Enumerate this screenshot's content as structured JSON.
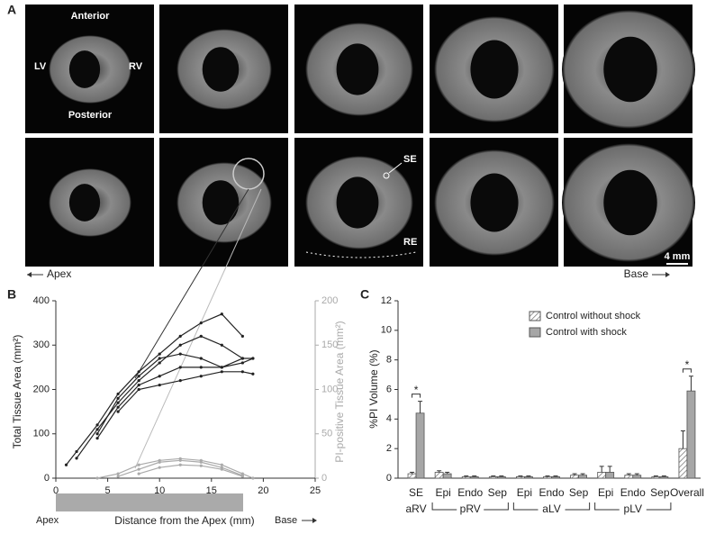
{
  "panel_a": {
    "label": "A",
    "orientation": [
      "Anterior",
      "LV",
      "RV",
      "Posterior"
    ],
    "annotations": [
      "SE",
      "RE"
    ],
    "scale_bar": "4 mm",
    "apex": "Apex",
    "base": "Base"
  },
  "chart_data": [
    {
      "type": "line",
      "panel_label": "B",
      "ylabel": "Total Tissue Area (mm²)",
      "y2label": "PI-positive Tissue Area (mm²)",
      "xlabel": "Distance from the Apex (mm)",
      "ruler_labels": [
        "Apex",
        "Base"
      ],
      "x": [
        1,
        2,
        4,
        6,
        8,
        10,
        12,
        14,
        16,
        18,
        19
      ],
      "xlim": [
        0,
        25
      ],
      "xticks": [
        0,
        5,
        10,
        15,
        20,
        25
      ],
      "ylim": [
        0,
        400
      ],
      "yticks": [
        0,
        100,
        200,
        300,
        400
      ],
      "y2lim": [
        0,
        200
      ],
      "y2ticks": [
        0,
        50,
        100,
        150,
        200
      ],
      "series": [
        {
          "color": "#222222",
          "values": [
            30,
            60,
            120,
            190,
            240,
            280,
            320,
            350,
            370,
            320,
            null
          ]
        },
        {
          "color": "#222222",
          "values": [
            null,
            45,
            110,
            170,
            220,
            260,
            300,
            320,
            300,
            270,
            null
          ]
        },
        {
          "color": "#222222",
          "values": [
            null,
            null,
            100,
            180,
            230,
            270,
            280,
            270,
            250,
            270,
            270
          ]
        },
        {
          "color": "#222222",
          "values": [
            null,
            null,
            90,
            160,
            210,
            230,
            250,
            250,
            250,
            260,
            270
          ]
        },
        {
          "color": "#222222",
          "values": [
            null,
            null,
            null,
            150,
            200,
            210,
            220,
            230,
            240,
            240,
            235
          ]
        },
        {
          "color": "#aaaaaa",
          "axis": "y2",
          "values": [
            null,
            null,
            0,
            5,
            15,
            20,
            22,
            20,
            15,
            5,
            0
          ]
        },
        {
          "color": "#aaaaaa",
          "axis": "y2",
          "values": [
            null,
            null,
            null,
            2,
            10,
            18,
            20,
            18,
            12,
            3,
            null
          ]
        },
        {
          "color": "#aaaaaa",
          "axis": "y2",
          "values": [
            null,
            null,
            null,
            null,
            5,
            12,
            15,
            14,
            10,
            2,
            null
          ]
        }
      ]
    },
    {
      "type": "bar",
      "panel_label": "C",
      "ylabel": "%PI Volume (%)",
      "categories": [
        "SE",
        "Epi",
        "Endo",
        "Sep",
        "Epi",
        "Endo",
        "Sep",
        "Epi",
        "Endo",
        "Sep",
        "Overall"
      ],
      "groups": [
        {
          "label": "aRV",
          "span": [
            0,
            0
          ]
        },
        {
          "label": "pRV",
          "span": [
            1,
            3
          ]
        },
        {
          "label": "aLV",
          "span": [
            4,
            6
          ]
        },
        {
          "label": "pLV",
          "span": [
            7,
            9
          ]
        }
      ],
      "ylim": [
        0,
        12
      ],
      "yticks": [
        0,
        2,
        4,
        6,
        8,
        10,
        12
      ],
      "legend": "top-right",
      "significance": [
        {
          "label": "*",
          "category": 0
        },
        {
          "label": "*",
          "category": 10
        }
      ],
      "series": [
        {
          "name": "Control without shock",
          "color": "#ffffff",
          "hatch": true,
          "values": [
            0.3,
            0.4,
            0.1,
            0.1,
            0.1,
            0.1,
            0.2,
            0.4,
            0.2,
            0.1,
            2.0
          ],
          "errors": [
            0.1,
            0.1,
            0.05,
            0.05,
            0.05,
            0.05,
            0.1,
            0.4,
            0.1,
            0.05,
            1.2
          ]
        },
        {
          "name": "Control with shock",
          "color": "#a6a6a6",
          "values": [
            4.4,
            0.3,
            0.1,
            0.1,
            0.1,
            0.1,
            0.2,
            0.4,
            0.2,
            0.1,
            5.9
          ],
          "errors": [
            0.8,
            0.1,
            0.05,
            0.05,
            0.05,
            0.05,
            0.1,
            0.4,
            0.1,
            0.05,
            1.0
          ]
        }
      ]
    }
  ]
}
